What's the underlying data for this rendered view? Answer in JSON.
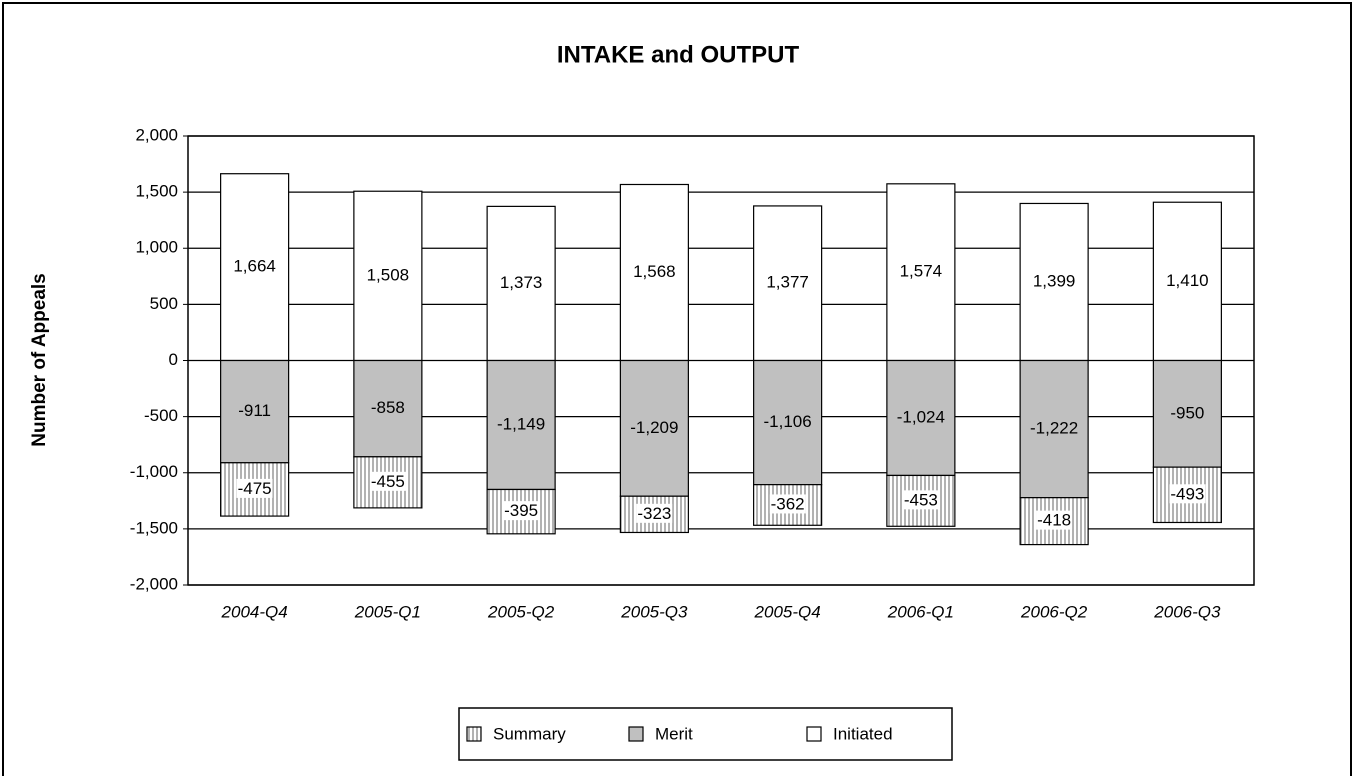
{
  "chart_data": {
    "type": "stacked-bar",
    "title": "INTAKE and OUTPUT",
    "y_label": "Number of Appeals",
    "categories": [
      "2004-Q4",
      "2005-Q1",
      "2005-Q2",
      "2005-Q3",
      "2005-Q4",
      "2006-Q1",
      "2006-Q2",
      "2006-Q3"
    ],
    "series": [
      {
        "name": "Summary",
        "color": "#ffffff",
        "hatch": true,
        "values": [
          -475,
          -455,
          -395,
          -323,
          -362,
          -453,
          -418,
          -493
        ]
      },
      {
        "name": "Merit",
        "color": "#c0c0c0",
        "values": [
          -911,
          -858,
          -1149,
          -1209,
          -1106,
          -1024,
          -1222,
          -950
        ],
        "value_labels": [
          "-911",
          "-858",
          "-1,149",
          "-1,209",
          "-1,106",
          "-1,024",
          "-1,222",
          "-950"
        ]
      },
      {
        "name": "Initiated",
        "color": "#ffffff",
        "values": [
          1664,
          1508,
          1373,
          1568,
          1377,
          1574,
          1399,
          1410
        ],
        "value_labels": [
          "1,664",
          "1,508",
          "1,373",
          "1,568",
          "1,377",
          "1,574",
          "1,399",
          "1,410"
        ]
      }
    ],
    "ylim": [
      -2000,
      2000
    ],
    "yticks": [
      {
        "value": -2000,
        "label": "-2,000"
      },
      {
        "value": -1500,
        "label": "-1,500"
      },
      {
        "value": -1000,
        "label": "-1,000"
      },
      -500,
      0,
      500,
      {
        "value": 1000,
        "label": "1,000"
      },
      {
        "value": 1500,
        "label": "1,500"
      },
      {
        "value": 2000,
        "label": "2,000"
      }
    ],
    "grid": true,
    "legend": "bottom"
  }
}
